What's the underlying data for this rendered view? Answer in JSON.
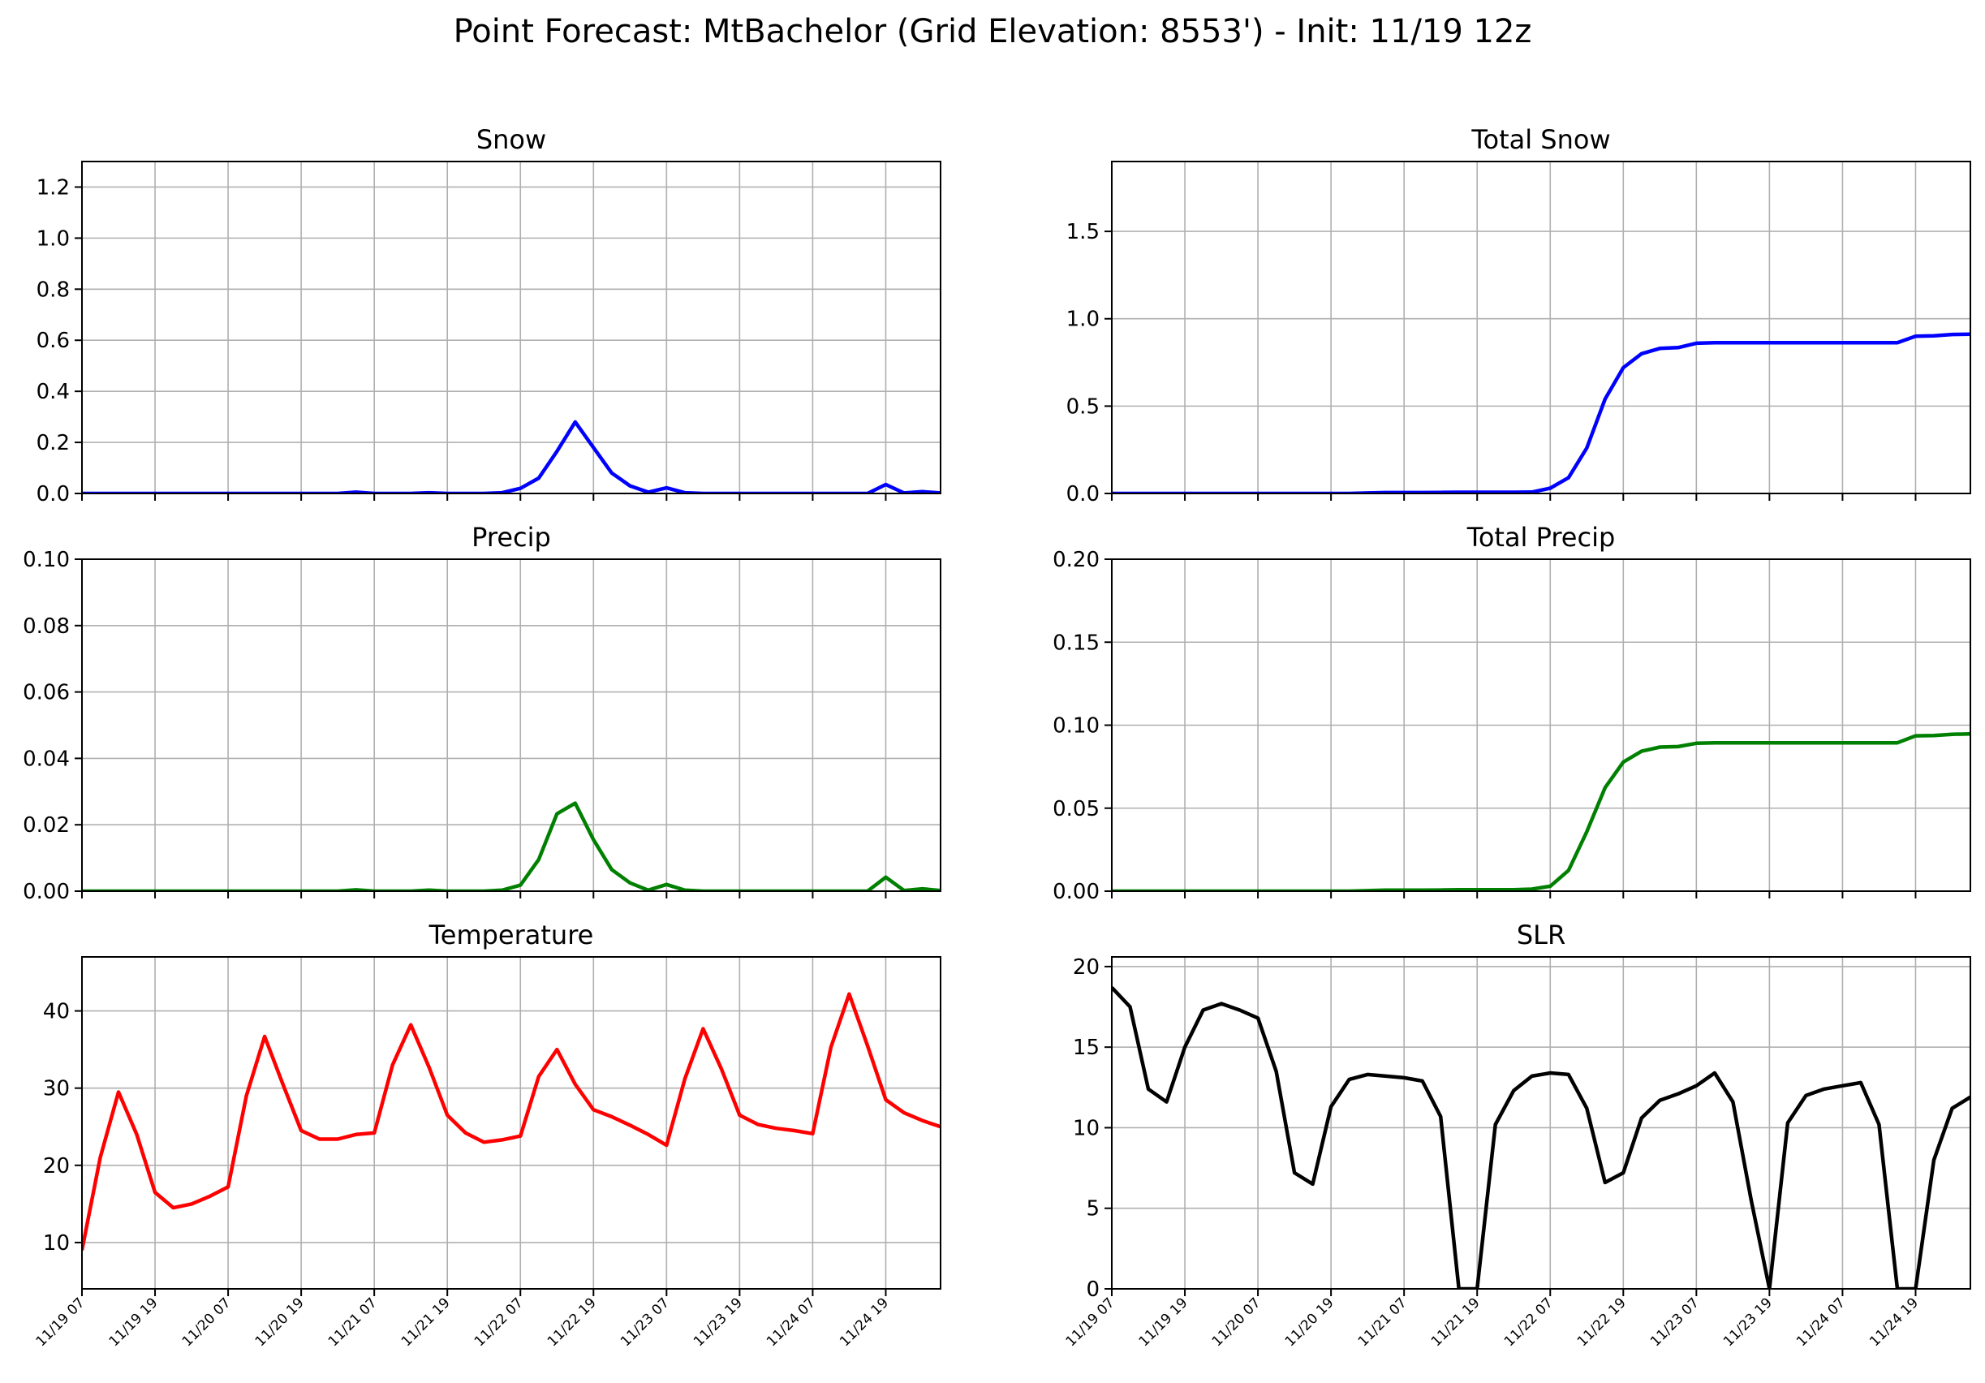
{
  "figure_title": "Point Forecast: MtBachelor (Grid Elevation: 8553') - Init: 11/19 12z",
  "chart_data": [
    {
      "type": "line",
      "title": "Snow",
      "color": "#0000ff",
      "ylim": [
        0,
        1.3
      ],
      "yticks": [
        0.0,
        0.2,
        0.4,
        0.6,
        0.8,
        1.0,
        1.2
      ],
      "ytick_labels": [
        "0.0",
        "0.2",
        "0.4",
        "0.6",
        "0.8",
        "1.0",
        "1.2"
      ],
      "xtick_labels": [],
      "grid": true,
      "x": [
        0,
        1,
        2,
        3,
        4,
        5,
        6,
        7,
        8,
        9,
        10,
        11,
        12,
        13,
        14,
        15,
        16,
        17,
        18,
        19,
        20,
        21,
        22,
        23,
        24,
        25,
        26,
        27,
        28,
        29,
        30,
        31,
        32,
        33,
        34,
        35,
        36,
        37,
        38,
        39,
        40,
        41,
        42,
        43,
        44,
        45,
        46,
        47
      ],
      "values": [
        0,
        0,
        0,
        0,
        0,
        0,
        0,
        0,
        0,
        0,
        0,
        0,
        0,
        0,
        0,
        0.005,
        0,
        0,
        0,
        0.003,
        0,
        0,
        0,
        0.003,
        0.02,
        0.06,
        0.165,
        0.28,
        0.18,
        0.08,
        0.03,
        0.005,
        0.022,
        0.003,
        0,
        0,
        0,
        0,
        0,
        0,
        0,
        0,
        0,
        0,
        0.035,
        0.002,
        0.007,
        0.002
      ]
    },
    {
      "type": "line",
      "title": "Total Snow",
      "color": "#0000ff",
      "ylim": [
        0,
        1.9
      ],
      "yticks": [
        0.0,
        0.5,
        1.0,
        1.5
      ],
      "ytick_labels": [
        "0.0",
        "0.5",
        "1.0",
        "1.5"
      ],
      "xtick_labels": [],
      "grid": true,
      "x": [
        0,
        1,
        2,
        3,
        4,
        5,
        6,
        7,
        8,
        9,
        10,
        11,
        12,
        13,
        14,
        15,
        16,
        17,
        18,
        19,
        20,
        21,
        22,
        23,
        24,
        25,
        26,
        27,
        28,
        29,
        30,
        31,
        32,
        33,
        34,
        35,
        36,
        37,
        38,
        39,
        40,
        41,
        42,
        43,
        44,
        45,
        46,
        47
      ],
      "values": [
        0,
        0,
        0,
        0,
        0,
        0,
        0,
        0,
        0,
        0,
        0,
        0,
        0,
        0,
        0.003,
        0.005,
        0.005,
        0.005,
        0.006,
        0.007,
        0.007,
        0.007,
        0.007,
        0.008,
        0.03,
        0.09,
        0.26,
        0.54,
        0.72,
        0.8,
        0.83,
        0.835,
        0.86,
        0.863,
        0.863,
        0.863,
        0.863,
        0.863,
        0.863,
        0.863,
        0.863,
        0.863,
        0.863,
        0.863,
        0.9,
        0.902,
        0.91,
        0.912
      ]
    },
    {
      "type": "line",
      "title": "Precip",
      "color": "#008000",
      "ylim": [
        0,
        0.1
      ],
      "yticks": [
        0.0,
        0.02,
        0.04,
        0.06,
        0.08,
        0.1
      ],
      "ytick_labels": [
        "0.00",
        "0.02",
        "0.04",
        "0.06",
        "0.08",
        "0.10"
      ],
      "xtick_labels": [],
      "grid": true,
      "x": [
        0,
        1,
        2,
        3,
        4,
        5,
        6,
        7,
        8,
        9,
        10,
        11,
        12,
        13,
        14,
        15,
        16,
        17,
        18,
        19,
        20,
        21,
        22,
        23,
        24,
        25,
        26,
        27,
        28,
        29,
        30,
        31,
        32,
        33,
        34,
        35,
        36,
        37,
        38,
        39,
        40,
        41,
        42,
        43,
        44,
        45,
        46,
        47
      ],
      "values": [
        0,
        0,
        0,
        0,
        0,
        0,
        0,
        0,
        0,
        0,
        0,
        0,
        0,
        0,
        0,
        0.0004,
        0,
        0,
        0,
        0.0003,
        0,
        0,
        0,
        0.0003,
        0.0018,
        0.0095,
        0.0233,
        0.0265,
        0.0155,
        0.0065,
        0.0025,
        0.0003,
        0.002,
        0.0003,
        0,
        0,
        0,
        0,
        0,
        0,
        0,
        0,
        0,
        0,
        0.0042,
        0.0002,
        0.0007,
        0.0002
      ]
    },
    {
      "type": "line",
      "title": "Total Precip",
      "color": "#008000",
      "ylim": [
        0,
        0.2
      ],
      "yticks": [
        0.0,
        0.05,
        0.1,
        0.15,
        0.2
      ],
      "ytick_labels": [
        "0.00",
        "0.05",
        "0.10",
        "0.15",
        "0.20"
      ],
      "xtick_labels": [],
      "grid": true,
      "x": [
        0,
        1,
        2,
        3,
        4,
        5,
        6,
        7,
        8,
        9,
        10,
        11,
        12,
        13,
        14,
        15,
        16,
        17,
        18,
        19,
        20,
        21,
        22,
        23,
        24,
        25,
        26,
        27,
        28,
        29,
        30,
        31,
        32,
        33,
        34,
        35,
        36,
        37,
        38,
        39,
        40,
        41,
        42,
        43,
        44,
        45,
        46,
        47
      ],
      "values": [
        0,
        0,
        0,
        0,
        0,
        0,
        0,
        0,
        0,
        0,
        0,
        0,
        0,
        0,
        0.0003,
        0.0006,
        0.0006,
        0.0006,
        0.0007,
        0.0009,
        0.0009,
        0.0009,
        0.0009,
        0.0012,
        0.003,
        0.0125,
        0.0358,
        0.0623,
        0.0778,
        0.0843,
        0.0868,
        0.0871,
        0.0891,
        0.0894,
        0.0894,
        0.0894,
        0.0894,
        0.0894,
        0.0894,
        0.0894,
        0.0894,
        0.0894,
        0.0894,
        0.0894,
        0.0936,
        0.0938,
        0.0945,
        0.0947
      ]
    },
    {
      "type": "line",
      "title": "Temperature",
      "color": "#ff0000",
      "ylim": [
        4,
        47
      ],
      "yticks": [
        10,
        20,
        30,
        40
      ],
      "ytick_labels": [
        "10",
        "20",
        "30",
        "40"
      ],
      "xtick_labels": [
        "11/19 07",
        "11/19 19",
        "11/20 07",
        "11/20 19",
        "11/21 07",
        "11/21 19",
        "11/22 07",
        "11/22 19",
        "11/23 07",
        "11/23 19",
        "11/24 07",
        "11/24 19"
      ],
      "grid": true,
      "x": [
        0,
        1,
        2,
        3,
        4,
        5,
        6,
        7,
        8,
        9,
        10,
        11,
        12,
        13,
        14,
        15,
        16,
        17,
        18,
        19,
        20,
        21,
        22,
        23,
        24,
        25,
        26,
        27,
        28,
        29,
        30,
        31,
        32,
        33,
        34,
        35,
        36,
        37,
        38,
        39,
        40,
        41,
        42,
        43,
        44,
        45,
        46,
        47
      ],
      "values": [
        9,
        21,
        29.5,
        24,
        16.5,
        14.5,
        15,
        16,
        17.2,
        29,
        36.7,
        30.5,
        24.5,
        23.4,
        23.4,
        24,
        24.2,
        33,
        38.2,
        32.7,
        26.5,
        24.2,
        23,
        23.3,
        23.8,
        31.5,
        35,
        30.5,
        27.2,
        26.3,
        25.2,
        24,
        22.6,
        31.2,
        37.7,
        32.5,
        26.5,
        25.3,
        24.8,
        24.5,
        24.1,
        35.3,
        42.2,
        35.5,
        28.5,
        26.8,
        25.8,
        25
      ]
    },
    {
      "type": "line",
      "title": "SLR",
      "color": "#000000",
      "ylim": [
        0,
        20.6
      ],
      "yticks": [
        0,
        5,
        10,
        15,
        20
      ],
      "ytick_labels": [
        "0",
        "5",
        "10",
        "15",
        "20"
      ],
      "xtick_labels": [
        "11/19 07",
        "11/19 19",
        "11/20 07",
        "11/20 19",
        "11/21 07",
        "11/21 19",
        "11/22 07",
        "11/22 19",
        "11/23 07",
        "11/23 19",
        "11/24 07",
        "11/24 19"
      ],
      "grid": true,
      "x": [
        0,
        1,
        2,
        3,
        4,
        5,
        6,
        7,
        8,
        9,
        10,
        11,
        12,
        13,
        14,
        15,
        16,
        17,
        18,
        19,
        20,
        21,
        22,
        23,
        24,
        25,
        26,
        27,
        28,
        29,
        30,
        31,
        32,
        33,
        34,
        35,
        36,
        37,
        38,
        39,
        40,
        41,
        42,
        43,
        44,
        45,
        46,
        47
      ],
      "values": [
        18.7,
        17.5,
        12.4,
        11.6,
        15,
        17.3,
        17.7,
        17.3,
        16.8,
        13.5,
        7.2,
        6.5,
        11.3,
        13,
        13.3,
        13.2,
        13.1,
        12.9,
        10.7,
        0,
        0,
        10.2,
        12.3,
        13.2,
        13.4,
        13.3,
        11.2,
        6.6,
        7.2,
        10.6,
        11.7,
        12.1,
        12.6,
        13.4,
        11.6,
        5.5,
        0,
        10.3,
        12,
        12.4,
        12.6,
        12.8,
        10.2,
        0,
        0,
        8,
        11.2,
        11.9
      ]
    }
  ]
}
